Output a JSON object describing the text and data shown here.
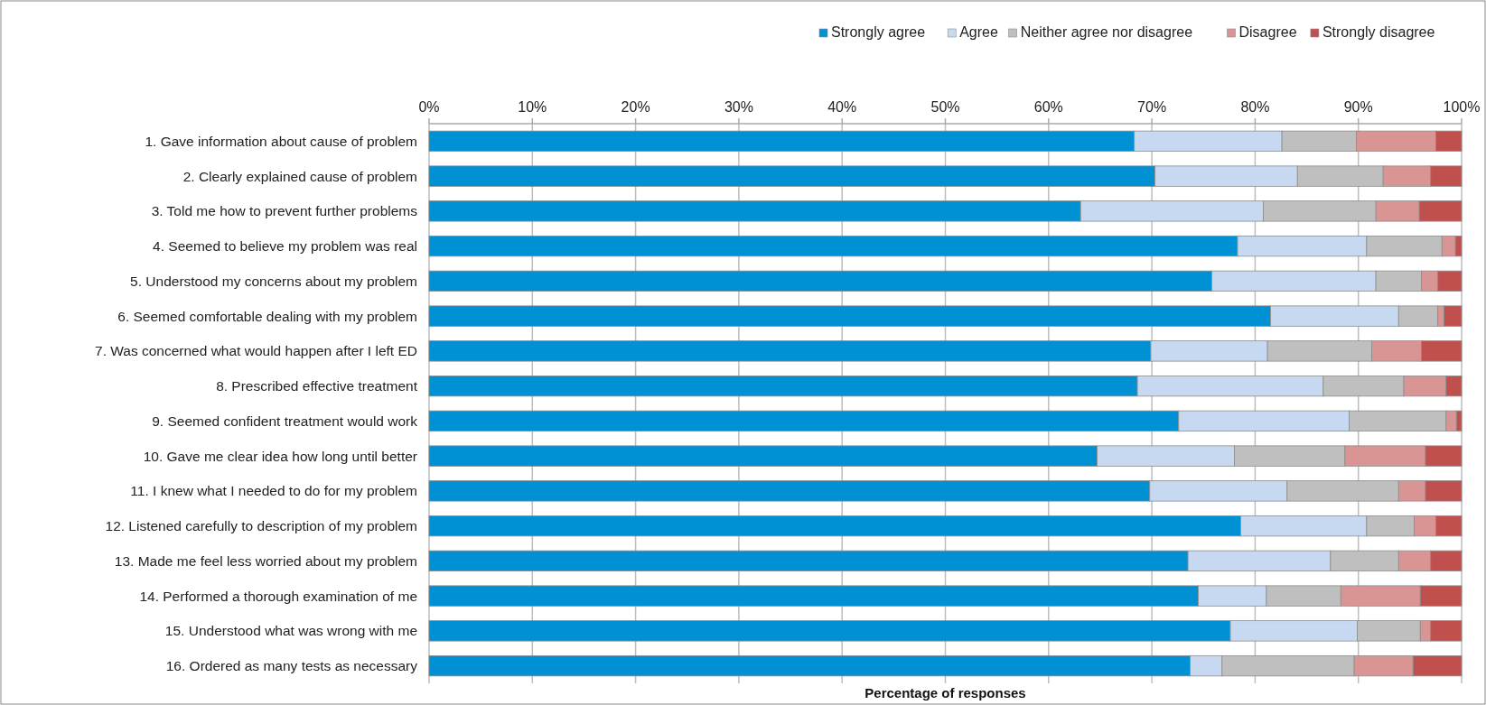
{
  "chart_data": {
    "type": "bar",
    "orientation": "horizontal",
    "stacked": true,
    "xlabel": "Percentage of responses",
    "legend": "top right",
    "grid": "x",
    "categories": [
      "1. Gave information about cause of problem",
      "2. Clearly explained cause of problem",
      "3. Told me how to prevent further problems",
      "4. Seemed to believe my problem was real",
      "5. Understood my concerns about my problem",
      "6. Seemed comfortable dealing with my problem",
      "7. Was concerned what would happen after I left ED",
      "8. Prescribed effective treatment",
      "9. Seemed confident treatment would work",
      "10. Gave me clear idea how long until better",
      "11. I knew what I needed to do for my problem",
      "12. Listened carefully to description of my problem",
      "13. Made me feel less worried about my problem",
      "14. Performed a thorough examination of me",
      "15. Understood what was wrong with me",
      "16. Ordered as many tests as necessary"
    ],
    "xlim": [
      0,
      100
    ],
    "xticks": [
      {
        "value": 0,
        "label": "0%"
      },
      {
        "value": 10,
        "label": "10%"
      },
      {
        "value": 20,
        "label": "20%"
      },
      {
        "value": 30,
        "label": "30%"
      },
      {
        "value": 40,
        "label": "40%"
      },
      {
        "value": 50,
        "label": "50%"
      },
      {
        "value": 60,
        "label": "60%"
      },
      {
        "value": 70,
        "label": "70%"
      },
      {
        "value": 80,
        "label": "80%"
      },
      {
        "value": 90,
        "label": "90%"
      },
      {
        "value": 100,
        "label": "100%"
      }
    ],
    "series": [
      {
        "name": "Strongly agree",
        "color": "#0090d4",
        "values": [
          68.3,
          70.3,
          63.1,
          78.3,
          75.8,
          81.5,
          69.9,
          68.6,
          72.6,
          64.7,
          69.8,
          78.6,
          73.5,
          74.5,
          77.6,
          73.7
        ]
      },
      {
        "name": "Agree",
        "color": "#c6d9f1",
        "values": [
          14.3,
          13.8,
          17.7,
          12.5,
          15.9,
          12.4,
          11.3,
          18.0,
          16.5,
          13.3,
          13.3,
          12.2,
          13.8,
          6.6,
          12.3,
          3.1
        ]
      },
      {
        "name": "Neither agree nor disagree",
        "color": "#bfbfbf",
        "values": [
          7.2,
          8.3,
          10.9,
          7.3,
          4.4,
          3.8,
          10.1,
          7.8,
          9.4,
          10.7,
          10.8,
          4.6,
          6.6,
          7.2,
          6.1,
          12.8
        ]
      },
      {
        "name": "Disagree",
        "color": "#d99594",
        "values": [
          7.7,
          4.6,
          4.2,
          1.3,
          1.6,
          0.6,
          4.8,
          4.1,
          1.0,
          7.8,
          2.6,
          2.1,
          3.1,
          7.7,
          1.0,
          5.7
        ]
      },
      {
        "name": "Strongly disagree",
        "color": "#c0504d",
        "values": [
          2.5,
          3.0,
          4.1,
          0.6,
          2.3,
          1.7,
          3.9,
          1.5,
          0.5,
          3.5,
          3.5,
          2.5,
          3.0,
          4.0,
          3.0,
          4.7
        ]
      }
    ]
  }
}
